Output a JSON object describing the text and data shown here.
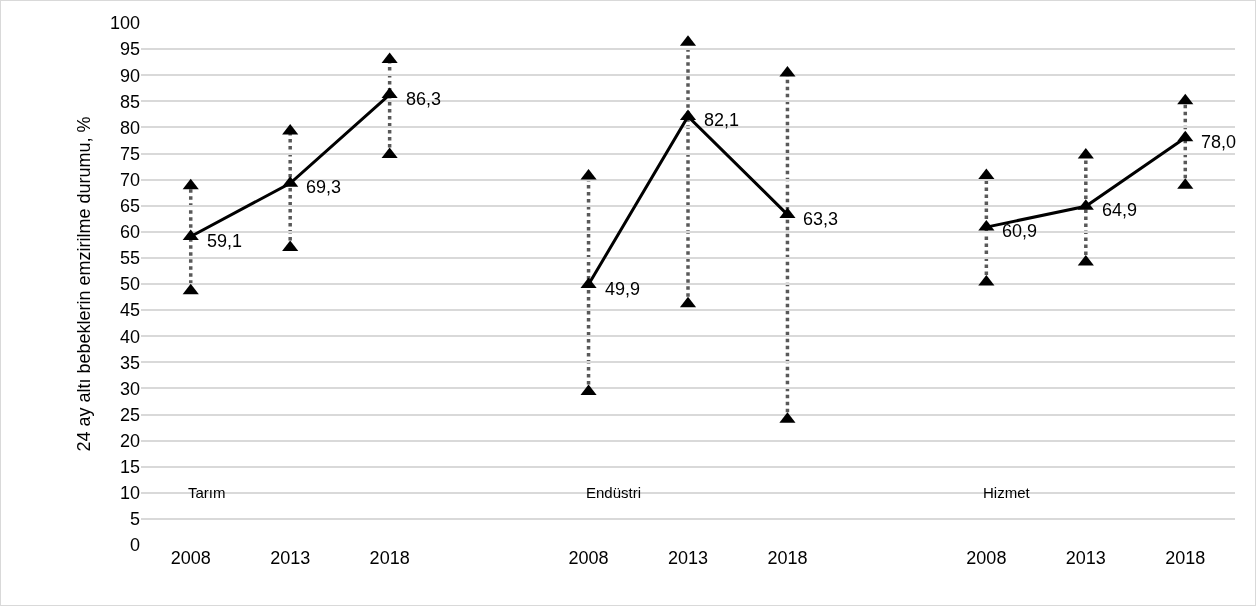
{
  "chart_data": {
    "type": "line",
    "ylabel": "24 ay altı bebeklerin emzirilme durumu, %",
    "categories": [
      "2008",
      "2013",
      "2018",
      null,
      "2008",
      "2013",
      "2018",
      null,
      "2008",
      "2013",
      "2018"
    ],
    "series": [
      {
        "type": "scatter",
        "color": "#000000",
        "values": [
          48.7,
          57.0,
          74.8,
          null,
          29.4,
          46.2,
          24.1,
          null,
          50.4,
          54.2,
          68.9
        ]
      },
      {
        "type": "scatter",
        "color": "#000000",
        "values": [
          68.8,
          79.3,
          93.0,
          null,
          70.7,
          96.3,
          90.4,
          null,
          70.8,
          74.7,
          85.1
        ]
      },
      {
        "color": "#000000",
        "values": [
          59.1,
          69.3,
          86.3,
          null,
          49.9,
          82.1,
          63.3,
          null,
          60.9,
          64.9,
          78.0
        ],
        "value_labels": [
          "59,1",
          "69,3",
          "86,3",
          null,
          "49,9",
          "82,1",
          "63,3",
          null,
          "60,9",
          "64,9",
          "78,0"
        ]
      }
    ],
    "annotations": [
      "Tarım",
      "Endüstri",
      "Hizmet"
    ],
    "ylim": [
      0,
      100
    ],
    "yticks": [
      0,
      5,
      10,
      15,
      20,
      25,
      30,
      35,
      40,
      45,
      50,
      55,
      60,
      65,
      70,
      75,
      80,
      85,
      90,
      95,
      100
    ],
    "grid": "y",
    "marker": "triangle",
    "line_style": "solid"
  }
}
